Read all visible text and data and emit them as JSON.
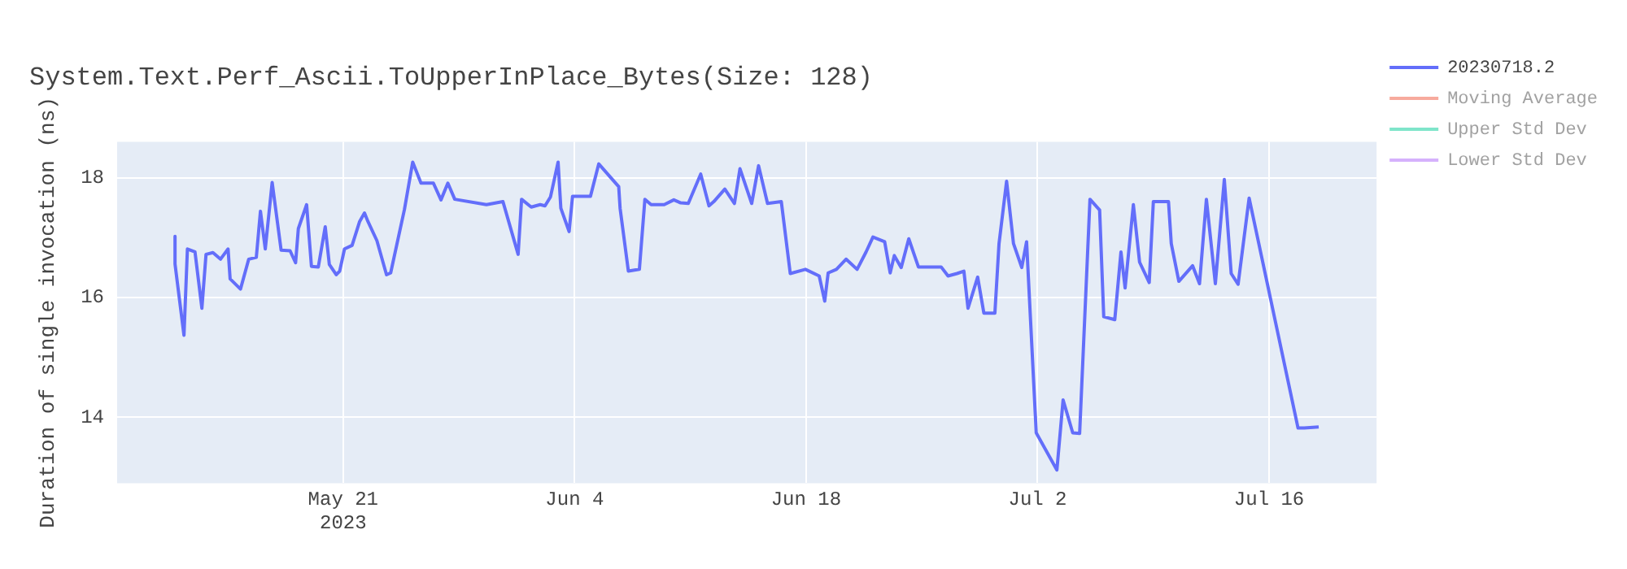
{
  "chart_data": {
    "type": "line",
    "title": "System.Text.Perf_Ascii.ToUpperInPlace_Bytes(Size: 128)",
    "ylabel": "Duration of single invocation (ns)",
    "x": [
      "2023-05-10T20:00",
      "2023-05-10T20:00",
      "2023-05-11T09:00",
      "2023-05-11T14:00",
      "2023-05-12T01:00",
      "2023-05-12T11:00",
      "2023-05-12T17:00",
      "2023-05-13T03:00",
      "2023-05-13T14:00",
      "2023-05-14T01:00",
      "2023-05-14T04:00",
      "2023-05-14T19:00",
      "2023-05-15T07:00",
      "2023-05-15T18:00",
      "2023-05-16T00:00",
      "2023-05-16T07:00",
      "2023-05-16T17:00",
      "2023-05-17T06:00",
      "2023-05-17T19:00",
      "2023-05-18T03:00",
      "2023-05-18T07:00",
      "2023-05-18T19:00",
      "2023-05-19T02:00",
      "2023-05-19T12:00",
      "2023-05-19T22:00",
      "2023-05-20T04:00",
      "2023-05-20T14:00",
      "2023-05-20T19:00",
      "2023-05-21T02:00",
      "2023-05-21T13:00",
      "2023-05-22T00:00",
      "2023-05-22T07:00",
      "2023-05-22T12:00",
      "2023-05-23T01:00",
      "2023-05-23T15:00",
      "2023-05-23T21:00",
      "2023-05-24T17:00",
      "2023-05-25T05:00",
      "2023-05-25T17:00",
      "2023-05-26T11:00",
      "2023-05-26T22:00",
      "2023-05-27T08:00",
      "2023-05-27T18:00",
      "2023-05-29T16:00",
      "2023-05-30T16:00",
      "2023-05-31T14:00",
      "2023-05-31T19:00",
      "2023-06-01T09:00",
      "2023-06-01T22:00",
      "2023-06-02T05:00",
      "2023-06-02T13:00",
      "2023-06-03T00:00",
      "2023-06-03T04:00",
      "2023-06-03T16:00",
      "2023-06-03T21:00",
      "2023-06-04T23:00",
      "2023-06-05T11:00",
      "2023-06-06T16:00",
      "2023-06-06T18:00",
      "2023-06-07T06:00",
      "2023-06-07T22:00",
      "2023-06-08T06:00",
      "2023-06-08T15:00",
      "2023-06-09T10:00",
      "2023-06-10T00:00",
      "2023-06-10T10:00",
      "2023-06-10T21:00",
      "2023-06-11T15:00",
      "2023-06-12T03:00",
      "2023-06-12T10:00",
      "2023-06-13T02:00",
      "2023-06-13T16:00",
      "2023-06-14T00:00",
      "2023-06-14T17:00",
      "2023-06-15T03:00",
      "2023-06-15T16:00",
      "2023-06-16T12:00",
      "2023-06-17T01:00",
      "2023-06-17T23:00",
      "2023-06-18T19:00",
      "2023-06-19T03:00",
      "2023-06-19T08:00",
      "2023-06-19T20:00",
      "2023-06-20T10:00",
      "2023-06-21T02:00",
      "2023-06-21T15:00",
      "2023-06-22T01:00",
      "2023-06-22T18:00",
      "2023-06-23T02:00",
      "2023-06-23T08:00",
      "2023-06-23T18:00",
      "2023-06-24T05:00",
      "2023-06-24T19:00",
      "2023-06-26T04:00",
      "2023-06-26T14:00",
      "2023-06-27T03:00",
      "2023-06-27T13:00",
      "2023-06-27T19:00",
      "2023-06-28T09:00",
      "2023-06-28T18:00",
      "2023-06-29T10:00",
      "2023-06-29T16:00",
      "2023-06-30T03:00",
      "2023-06-30T13:00",
      "2023-07-01T01:00",
      "2023-07-01T08:00",
      "2023-07-01T22:00",
      "2023-07-03T04:00",
      "2023-07-03T13:00",
      "2023-07-04T03:00",
      "2023-07-04T13:00",
      "2023-07-05T04:00",
      "2023-07-05T18:00",
      "2023-07-06T00:00",
      "2023-07-06T16:00",
      "2023-07-07T01:00",
      "2023-07-07T07:00",
      "2023-07-07T19:00",
      "2023-07-08T04:00",
      "2023-07-08T18:00",
      "2023-07-09T00:00",
      "2023-07-09T22:00",
      "2023-07-10T02:00",
      "2023-07-10T13:00",
      "2023-07-11T09:00",
      "2023-07-11T19:00",
      "2023-07-12T05:00",
      "2023-07-12T18:00",
      "2023-07-13T07:00",
      "2023-07-13T17:00",
      "2023-07-14T03:00",
      "2023-07-14T19:00",
      "2023-07-17T18:00",
      "2023-07-18T03:00",
      "2023-07-19T00:00"
    ],
    "series": [
      {
        "name": "20230718.2",
        "color": "#636efa",
        "values": [
          17.02,
          16.56,
          15.37,
          16.81,
          16.76,
          15.82,
          16.72,
          16.75,
          16.64,
          16.81,
          16.31,
          16.14,
          16.64,
          16.67,
          17.44,
          16.81,
          17.92,
          16.79,
          16.78,
          16.58,
          17.15,
          17.55,
          16.52,
          16.51,
          17.18,
          16.55,
          16.38,
          16.44,
          16.81,
          16.87,
          17.27,
          17.41,
          17.27,
          16.95,
          16.38,
          16.41,
          17.47,
          18.26,
          17.91,
          17.91,
          17.63,
          17.91,
          17.64,
          17.55,
          17.6,
          16.72,
          17.64,
          17.51,
          17.55,
          17.53,
          17.68,
          18.26,
          17.49,
          17.1,
          17.69,
          17.69,
          18.23,
          17.85,
          17.49,
          16.44,
          16.47,
          17.64,
          17.55,
          17.55,
          17.63,
          17.58,
          17.57,
          18.06,
          17.53,
          17.6,
          17.81,
          17.57,
          18.15,
          17.57,
          18.2,
          17.57,
          17.6,
          16.4,
          16.47,
          16.36,
          15.94,
          16.41,
          16.47,
          16.64,
          16.47,
          16.76,
          17.01,
          16.93,
          16.41,
          16.7,
          16.5,
          16.98,
          16.51,
          16.51,
          16.36,
          16.4,
          16.44,
          15.82,
          16.34,
          15.74,
          15.74,
          16.9,
          17.94,
          16.9,
          16.5,
          16.93,
          13.74,
          13.12,
          14.29,
          13.74,
          13.73,
          17.64,
          17.46,
          15.68,
          15.63,
          16.76,
          16.16,
          17.55,
          16.59,
          16.25,
          17.6,
          17.6,
          16.9,
          16.27,
          16.53,
          16.23,
          17.64,
          16.23,
          17.97,
          16.4,
          16.22,
          17.66,
          13.82,
          13.82,
          13.84
        ]
      },
      {
        "name": "Moving Average",
        "color": "#ef553b",
        "values": [
          null,
          null,
          null,
          null,
          null,
          null,
          null,
          null,
          null,
          null,
          null,
          null,
          null,
          null,
          null,
          null,
          null,
          null,
          null,
          null,
          null,
          null,
          null,
          null,
          null,
          null,
          null,
          null,
          null,
          null,
          null,
          null,
          null,
          null,
          null,
          null,
          null,
          null,
          null,
          null,
          null,
          null,
          null,
          null,
          null,
          null,
          null,
          null,
          null,
          null,
          null,
          null,
          null,
          null,
          null,
          null,
          null,
          null,
          null,
          null,
          null,
          null,
          null,
          null,
          null,
          null,
          null,
          null,
          null,
          null,
          null,
          null,
          null,
          null,
          null,
          null,
          null,
          null,
          null,
          null,
          null,
          null,
          null,
          null,
          null,
          null,
          null,
          null,
          null,
          null,
          null,
          null,
          null,
          null,
          null,
          null,
          null,
          null,
          null,
          null,
          null,
          null,
          null,
          null,
          null,
          null,
          null,
          null,
          null,
          null,
          null,
          null,
          null,
          null,
          null,
          null,
          null,
          null,
          null,
          null,
          null,
          null,
          null,
          null,
          null,
          null,
          null,
          null,
          null,
          null,
          null,
          null,
          null,
          null,
          null
        ]
      },
      {
        "name": "Upper Std Dev",
        "color": "#00cc96",
        "values": [
          null,
          null,
          null,
          null,
          null,
          null,
          null,
          null,
          null,
          null,
          null,
          null,
          null,
          null,
          null,
          null,
          null,
          null,
          null,
          null,
          null,
          null,
          null,
          null,
          null,
          null,
          null,
          null,
          null,
          null,
          null,
          null,
          null,
          null,
          null,
          null,
          null,
          null,
          null,
          null,
          null,
          null,
          null,
          null,
          null,
          null,
          null,
          null,
          null,
          null,
          null,
          null,
          null,
          null,
          null,
          null,
          null,
          null,
          null,
          null,
          null,
          null,
          null,
          null,
          null,
          null,
          null,
          null,
          null,
          null,
          null,
          null,
          null,
          null,
          null,
          null,
          null,
          null,
          null,
          null,
          null,
          null,
          null,
          null,
          null,
          null,
          null,
          null,
          null,
          null,
          null,
          null,
          null,
          null,
          null,
          null,
          null,
          null,
          null,
          null,
          null,
          null,
          null,
          null,
          null,
          null,
          null,
          null,
          null,
          null,
          null,
          null,
          null,
          null,
          null,
          null,
          null,
          null,
          null,
          null,
          null,
          null,
          null,
          null,
          null,
          null,
          null,
          null,
          null,
          null,
          null,
          null,
          null,
          null,
          null
        ]
      },
      {
        "name": "Lower Std Dev",
        "color": "#ab63fa",
        "values": [
          null,
          null,
          null,
          null,
          null,
          null,
          null,
          null,
          null,
          null,
          null,
          null,
          null,
          null,
          null,
          null,
          null,
          null,
          null,
          null,
          null,
          null,
          null,
          null,
          null,
          null,
          null,
          null,
          null,
          null,
          null,
          null,
          null,
          null,
          null,
          null,
          null,
          null,
          null,
          null,
          null,
          null,
          null,
          null,
          null,
          null,
          null,
          null,
          null,
          null,
          null,
          null,
          null,
          null,
          null,
          null,
          null,
          null,
          null,
          null,
          null,
          null,
          null,
          null,
          null,
          null,
          null,
          null,
          null,
          null,
          null,
          null,
          null,
          null,
          null,
          null,
          null,
          null,
          null,
          null,
          null,
          null,
          null,
          null,
          null,
          null,
          null,
          null,
          null,
          null,
          null,
          null,
          null,
          null,
          null,
          null,
          null,
          null,
          null,
          null,
          null,
          null,
          null,
          null,
          null,
          null,
          null,
          null,
          null,
          null,
          null,
          null,
          null,
          null,
          null,
          null,
          null,
          null,
          null,
          null,
          null,
          null,
          null,
          null,
          null,
          null,
          null,
          null,
          null,
          null,
          null,
          null,
          null,
          null,
          null
        ]
      }
    ],
    "xlim": [
      "2023-05-07T08:00",
      "2023-07-22T12:00"
    ],
    "xticks": [
      {
        "value": "2023-05-21",
        "label": "May 21\n2023"
      },
      {
        "value": "2023-06-04",
        "label": "Jun 4"
      },
      {
        "value": "2023-06-18",
        "label": "Jun 18"
      },
      {
        "value": "2023-07-02",
        "label": "Jul 2"
      },
      {
        "value": "2023-07-16",
        "label": "Jul 16"
      }
    ],
    "ylim": [
      12.9,
      18.6
    ],
    "yticks": [
      14,
      16,
      18
    ],
    "grid": true,
    "legend": "top right",
    "marker": "none",
    "line_style": "solid"
  }
}
